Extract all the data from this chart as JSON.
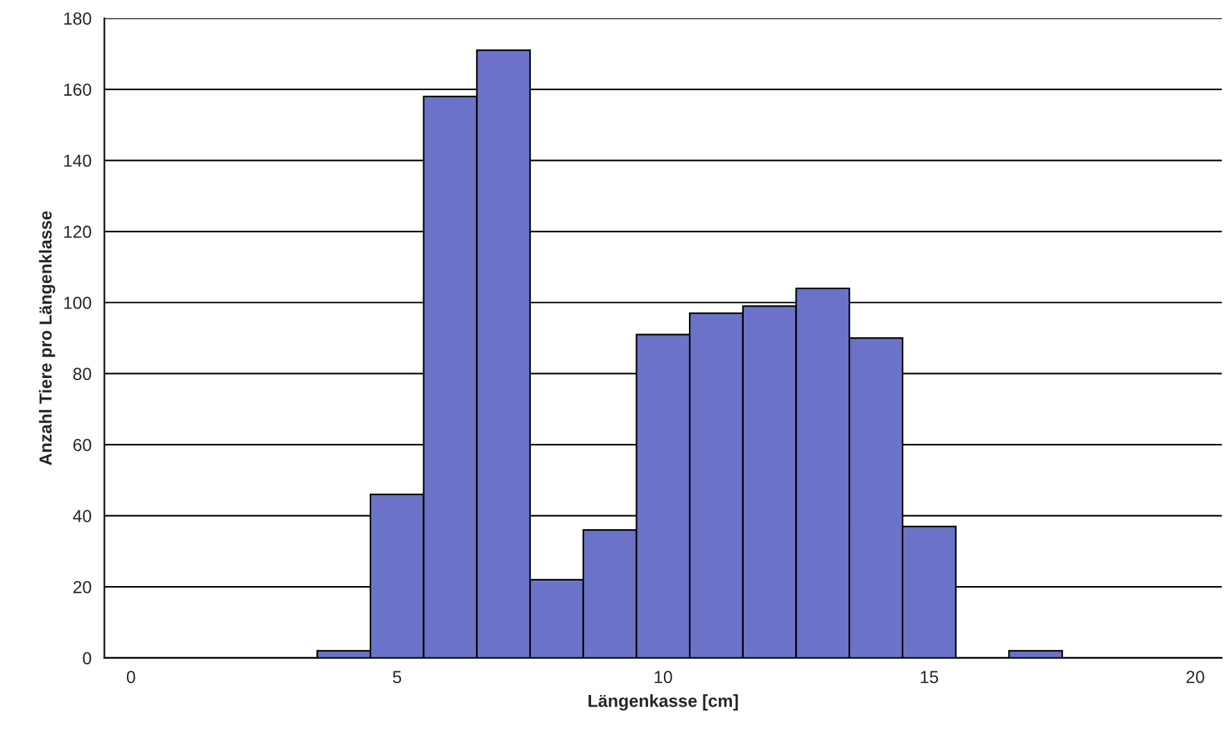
{
  "chart_data": {
    "type": "histogram",
    "xlabel": "Längenkasse [cm]",
    "ylabel": "Anzahl Tiere pro Längenklasse",
    "bins": [
      3.5,
      4.5,
      5.5,
      6.5,
      7.5,
      8.5,
      9.5,
      10.5,
      11.5,
      12.5,
      13.5,
      14.5,
      15.5,
      16.5,
      17.5
    ],
    "values": [
      2,
      46,
      158,
      171,
      22,
      36,
      91,
      97,
      99,
      104,
      90,
      37,
      0,
      2
    ],
    "color": "#6b73c9",
    "xlim": [
      -0.5,
      20.5
    ],
    "xticks": [
      0,
      5,
      10,
      15,
      20
    ],
    "ylim": [
      0,
      180
    ],
    "yticks": [
      0,
      20,
      40,
      60,
      80,
      100,
      120,
      140,
      160,
      180
    ],
    "grid": "y"
  }
}
